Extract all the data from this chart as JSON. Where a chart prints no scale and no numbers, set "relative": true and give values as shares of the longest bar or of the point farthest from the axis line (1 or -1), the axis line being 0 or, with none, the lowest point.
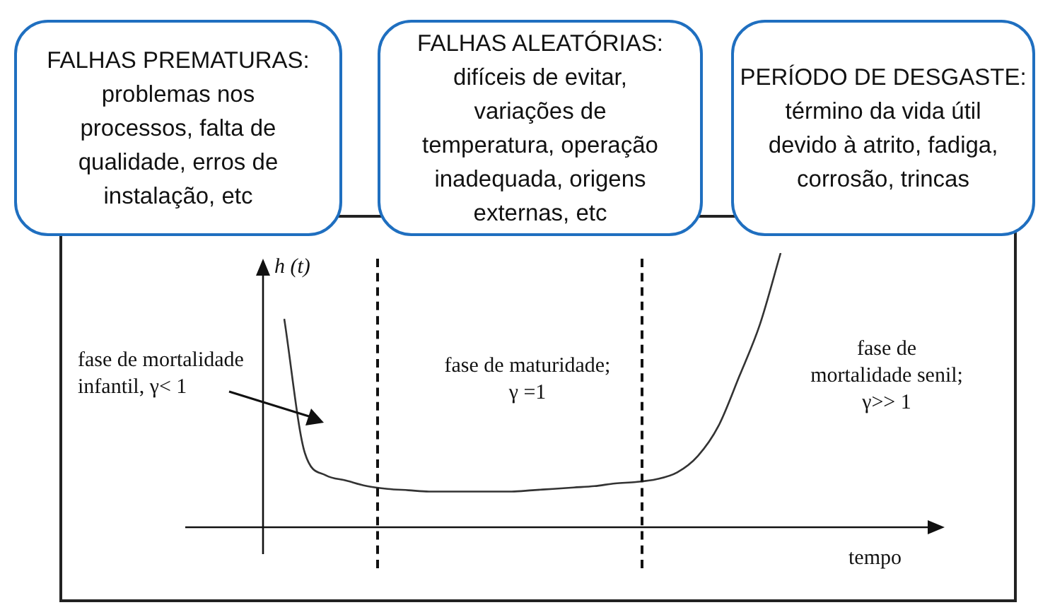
{
  "chart_data": {
    "type": "line",
    "relative": true,
    "xlabel": "tempo",
    "ylabel": "h (t)",
    "categories": [
      null,
      null,
      null,
      null,
      null,
      null,
      null,
      null,
      null,
      null,
      null,
      null,
      null,
      null,
      null,
      null,
      null,
      null,
      null,
      null,
      null,
      null,
      null,
      null,
      null
    ],
    "series": [
      {
        "color": "#333333",
        "values": [
          0.76,
          0.27,
          0.19,
          0.17,
          0.15,
          0.14,
          0.135,
          0.13,
          0.13,
          0.13,
          0.13,
          0.13,
          0.135,
          0.14,
          0.145,
          0.15,
          0.16,
          0.165,
          0.175,
          0.2,
          0.26,
          0.37,
          0.55,
          0.74,
          1.0
        ]
      }
    ],
    "marker": "none",
    "line_style": "solid",
    "legend": false,
    "annotations": [
      "FALHAS PREMATURAS:\nproblemas nos\nprocessos, falta de\nqualidade, erros de\ninstalação, etc",
      "FALHAS ALEATÓRIAS:\ndifíceis de evitar,\nvariações de\ntemperatura, operação\ninadequada, origens\nexternas, etc",
      "PERÍODO DE DESGASTE:\ntérmino da vida útil\ndevido à atrito, fadiga,\ncorrosão, trincas",
      "fase de mortalidade\ninfantil, γ< 1",
      "fase de maturidade;\nγ =1",
      "fase de\nmortalidade senil;\nγ>> 1"
    ]
  }
}
